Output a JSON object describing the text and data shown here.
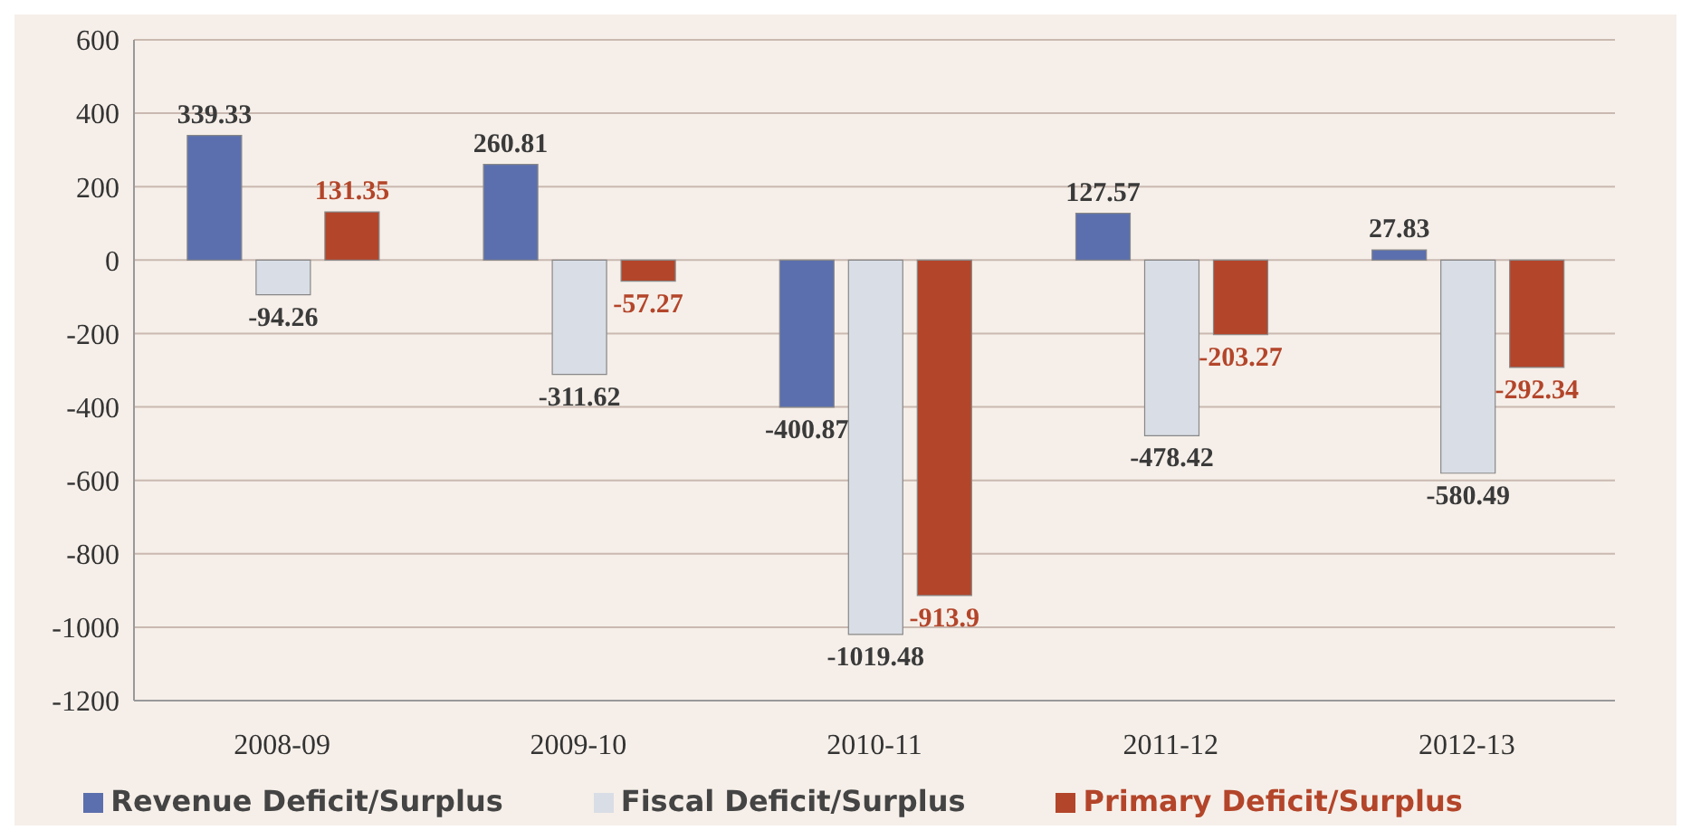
{
  "chart_data": {
    "type": "bar",
    "categories": [
      "2008-09",
      "2009-10",
      "2010-11",
      "2011-12",
      "2012-13"
    ],
    "series": [
      {
        "name": "Revenue Deficit/Surplus",
        "color": "#5b6fae",
        "values": [
          339.33,
          260.81,
          -400.87,
          127.57,
          27.83
        ]
      },
      {
        "name": "Fiscal Deficit/Surplus",
        "color": "#d9dde5",
        "values": [
          -94.26,
          -311.62,
          -1019.48,
          -478.42,
          -580.49
        ]
      },
      {
        "name": "Primary Deficit/Surplus",
        "color": "#b3452a",
        "values": [
          131.35,
          -57.27,
          -913.9,
          -203.27,
          -292.34
        ]
      }
    ],
    "ylim": [
      -1200,
      600
    ],
    "yticks": [
      -1200,
      -1000,
      -800,
      -600,
      -400,
      -200,
      0,
      200,
      400,
      600
    ],
    "grid": "y",
    "legend": "bottom",
    "data_labels": true
  }
}
